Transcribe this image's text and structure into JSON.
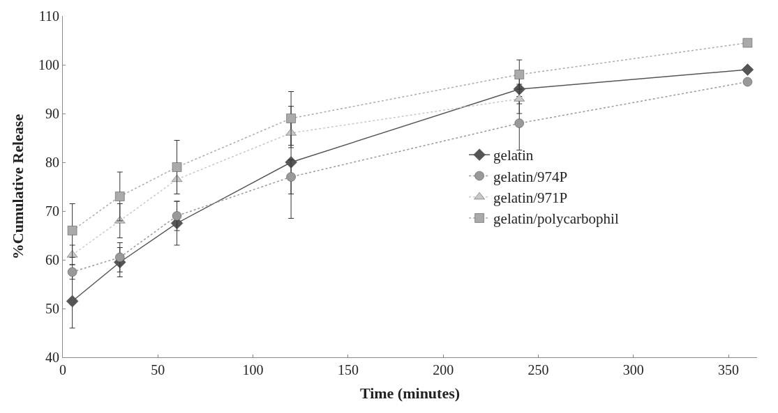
{
  "chart_data": {
    "type": "line",
    "xlabel": "Time (minutes)",
    "ylabel": "%Cumulative Release",
    "x": [
      5,
      30,
      60,
      120,
      240,
      360
    ],
    "series": [
      {
        "name": "gelatin",
        "color": "#555555",
        "marker": "diamond",
        "line_style": "solid",
        "values": [
          51.5,
          59.5,
          67.5,
          80,
          95,
          99
        ],
        "errors": [
          5.5,
          3,
          4.5,
          11.5,
          3,
          null
        ]
      },
      {
        "name": "gelatin/974P",
        "color": "#999999",
        "marker": "circle",
        "line_style": "dotted",
        "values": [
          57.5,
          60.5,
          69,
          77,
          88,
          96.5
        ],
        "errors": [
          1.5,
          3,
          3,
          3.5,
          5.5,
          null
        ]
      },
      {
        "name": "gelatin/971P",
        "color": "#c8c8c8",
        "marker": "triangle",
        "line_style": "dotted",
        "values": [
          61,
          68,
          76.5,
          86,
          93,
          null
        ],
        "errors": [
          2,
          3.5,
          3,
          3,
          3,
          null
        ]
      },
      {
        "name": "gelatin/polycarbophil",
        "color": "#aaaaaa",
        "marker": "square",
        "line_style": "dotted",
        "values": [
          66,
          73,
          79,
          89,
          98,
          104.5
        ],
        "errors": [
          5.5,
          5,
          5.5,
          5.5,
          3,
          null
        ]
      }
    ],
    "xlim": [
      0,
      365
    ],
    "xticks": [
      0,
      50,
      100,
      150,
      200,
      250,
      300,
      350
    ],
    "ylim": [
      40,
      110
    ],
    "yticks": [
      40,
      50,
      60,
      70,
      80,
      90,
      100,
      110
    ],
    "legend": "right"
  }
}
